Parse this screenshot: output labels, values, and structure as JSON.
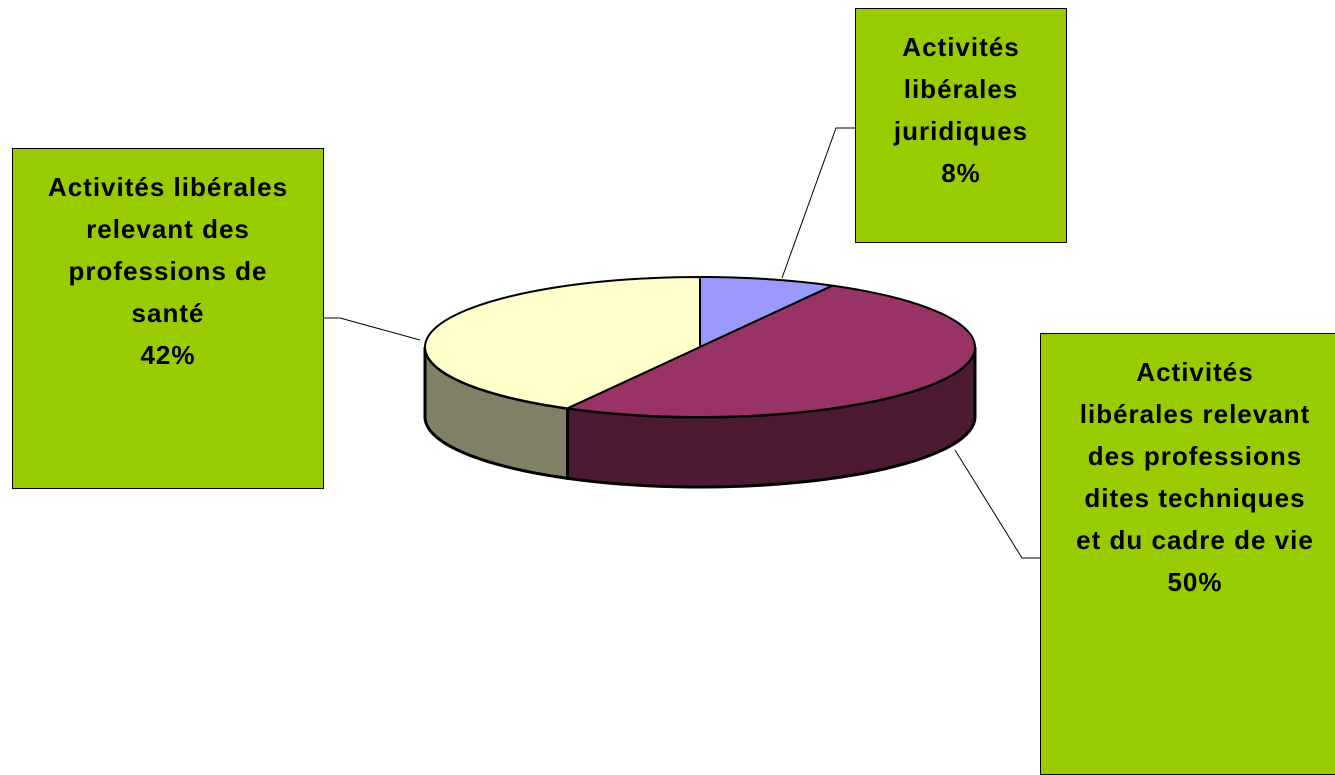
{
  "chart_data": {
    "type": "pie3d",
    "categories": [
      "Activités libérales juridiques",
      "Activités libérales relevant des professions dites techniques et du cadre de vie",
      "Activités libérales relevant des professions de santé"
    ],
    "values": [
      8,
      50,
      42
    ],
    "value_labels": [
      "8%",
      "50%",
      "42%"
    ],
    "colors": [
      "#9999ff",
      "#993366",
      "#ffffcc"
    ],
    "label_color": "#99cc00"
  }
}
